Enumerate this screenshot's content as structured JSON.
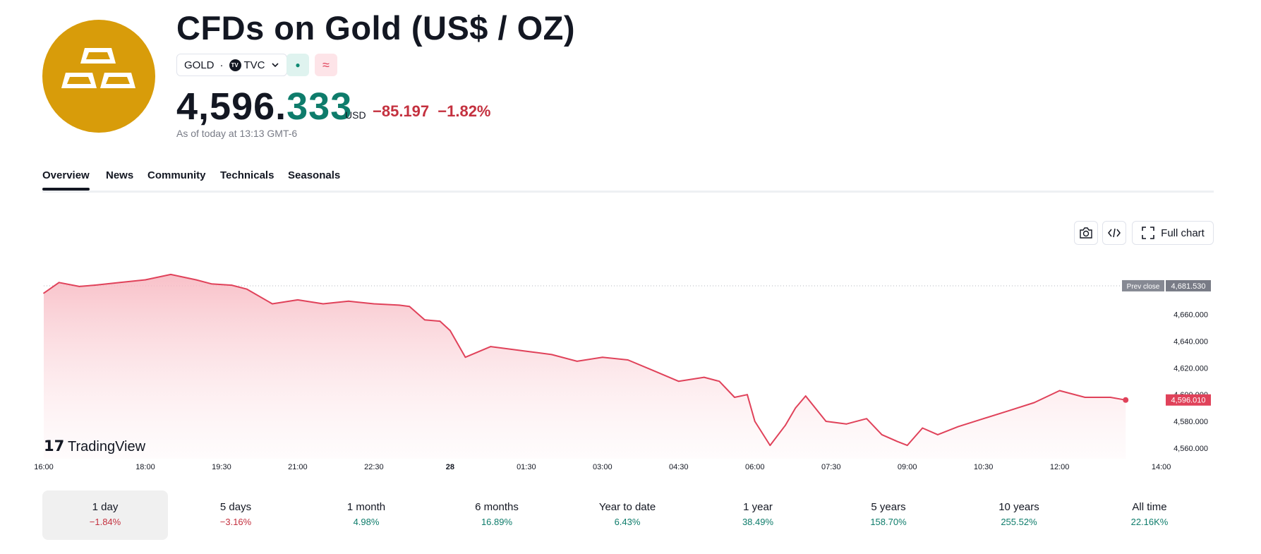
{
  "header": {
    "title": "CFDs on Gold (US$ / OZ)",
    "symbol": "GOLD",
    "separator": "·",
    "exchange": "TVC",
    "exchange_icon": "tradingview-icon",
    "price_int": "4,596.",
    "price_dec": "333",
    "currency": "USD",
    "change": "−85.197",
    "change_pct": "−1.82%",
    "as_of": "As of today at 13:13 GMT-6",
    "market_status_icon": "market-open-dot-icon",
    "delay_icon": "approx-icon",
    "colors": {
      "logo": "#d89c0a",
      "positive": "#0e7c6b",
      "negative": "#c4313f",
      "line": "#e0425a"
    }
  },
  "tabs": [
    {
      "label": "Overview",
      "active": true
    },
    {
      "label": "News"
    },
    {
      "label": "Community"
    },
    {
      "label": "Technicals"
    },
    {
      "label": "Seasonals"
    }
  ],
  "toolbar": {
    "full_chart_label": "Full chart",
    "camera_icon": "camera-icon",
    "embed_icon": "code-icon",
    "fullscreen_icon": "fullscreen-icon"
  },
  "chart_data": {
    "type": "area",
    "title": "CFDs on Gold (US$ / OZ) intraday",
    "watermark": "TradingView",
    "prev_close_label": "Prev close",
    "prev_close_value": "4,681.530",
    "prev_close": 4681.53,
    "last_value_label": "4,596.010",
    "last_value": 4596.01,
    "ylim": [
      4552,
      4700
    ],
    "y_ticks": [
      4660,
      4640,
      4620,
      4600,
      4580,
      4560
    ],
    "y_tick_labels": [
      "4,660.000",
      "4,640.000",
      "4,620.000",
      "4,600.000",
      "4,580.000",
      "4,560.000"
    ],
    "x_ticks": [
      0,
      2,
      3.5,
      5,
      6.5,
      8,
      9.5,
      11,
      12.5,
      14,
      15.5,
      17,
      18.5,
      20,
      22
    ],
    "x_tick_labels": [
      "16:00",
      "18:00",
      "19:30",
      "21:00",
      "22:30",
      "28",
      "01:30",
      "03:00",
      "04:30",
      "06:00",
      "07:30",
      "09:00",
      "10:30",
      "12:00",
      "14:00"
    ],
    "xlim": [
      0,
      22.2
    ],
    "x": [
      0,
      0.3,
      0.7,
      1.0,
      1.5,
      2.0,
      2.5,
      3.0,
      3.3,
      3.7,
      4.0,
      4.5,
      5.0,
      5.5,
      6.0,
      6.5,
      7.0,
      7.2,
      7.5,
      7.8,
      8.0,
      8.3,
      8.8,
      9.2,
      9.6,
      10.0,
      10.5,
      11.0,
      11.5,
      12.0,
      12.5,
      13.0,
      13.3,
      13.6,
      13.85,
      14.0,
      14.3,
      14.6,
      14.8,
      15.0,
      15.4,
      15.8,
      16.2,
      16.5,
      16.8,
      17.0,
      17.3,
      17.6,
      18.0,
      18.5,
      19.0,
      19.5,
      20.0,
      20.5,
      21.0,
      21.3
    ],
    "values": [
      4676,
      4684,
      4681,
      4682,
      4684,
      4686,
      4690,
      4686,
      4683,
      4682,
      4679,
      4668,
      4671,
      4668,
      4670,
      4668,
      4667,
      4666,
      4656,
      4655,
      4648,
      4628,
      4636,
      4634,
      4632,
      4630,
      4625,
      4628,
      4626,
      4618,
      4610,
      4613,
      4610,
      4598,
      4600,
      4580,
      4562,
      4577,
      4590,
      4599,
      4580,
      4578,
      4582,
      4570,
      4565,
      4562,
      4575,
      4570,
      4576,
      4582,
      4588,
      4594,
      4603,
      4598,
      4598,
      4596
    ]
  },
  "periods": [
    {
      "label": "1 day",
      "value": "−1.84%",
      "dir": "neg",
      "active": true
    },
    {
      "label": "5 days",
      "value": "−3.16%",
      "dir": "neg"
    },
    {
      "label": "1 month",
      "value": "4.98%",
      "dir": "pos"
    },
    {
      "label": "6 months",
      "value": "16.89%",
      "dir": "pos"
    },
    {
      "label": "Year to date",
      "value": "6.43%",
      "dir": "pos"
    },
    {
      "label": "1 year",
      "value": "38.49%",
      "dir": "pos"
    },
    {
      "label": "5 years",
      "value": "158.70%",
      "dir": "pos"
    },
    {
      "label": "10 years",
      "value": "255.52%",
      "dir": "pos"
    },
    {
      "label": "All time",
      "value": "22.16K%",
      "dir": "pos"
    }
  ]
}
